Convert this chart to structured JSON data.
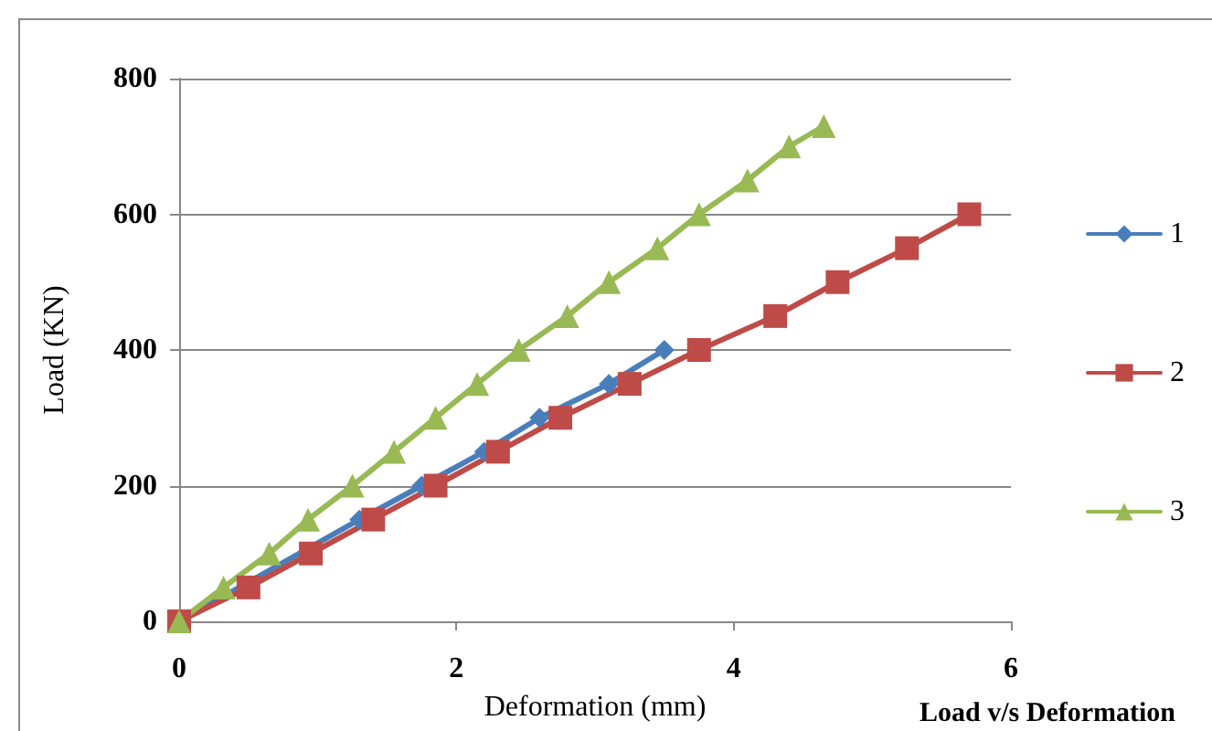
{
  "chart_data": {
    "type": "line",
    "xlabel": "Deformation (mm)",
    "ylabel": "Load (KN)",
    "annotations": [
      "Load v/s Deformation"
    ],
    "xlim": [
      0,
      6
    ],
    "xticks": [
      0,
      2,
      4,
      6
    ],
    "ylim": [
      0,
      800
    ],
    "yticks": [
      0,
      200,
      400,
      600,
      800
    ],
    "grid": "y",
    "legend": "right",
    "line_style": "solid",
    "series": [
      {
        "name": "1",
        "color": "#4a7ebb",
        "marker": "diamond",
        "x": [
          0,
          0.45,
          0.9,
          1.3,
          1.75,
          2.2,
          2.6,
          3.1,
          3.5
        ],
        "values": [
          0,
          null,
          null,
          150,
          200,
          250,
          300,
          350,
          400
        ]
      },
      {
        "name": "2",
        "color": "#be4b48",
        "marker": "square",
        "x": [
          0,
          0.5,
          0.95,
          1.4,
          1.85,
          2.3,
          2.75,
          3.25,
          3.75,
          4.3,
          4.75,
          5.25,
          5.7
        ],
        "values": [
          0,
          50,
          100,
          150,
          200,
          250,
          300,
          350,
          400,
          450,
          500,
          550,
          600
        ]
      },
      {
        "name": "3",
        "color": "#98b954",
        "marker": "triangle",
        "x": [
          0,
          0.32,
          0.65,
          0.93,
          1.25,
          1.55,
          1.85,
          2.15,
          2.45,
          2.8,
          3.1,
          3.45,
          3.75,
          4.1,
          4.4,
          4.65
        ],
        "values": [
          0,
          50,
          100,
          150,
          200,
          250,
          300,
          350,
          400,
          450,
          500,
          550,
          600,
          650,
          700,
          730
        ]
      }
    ]
  }
}
